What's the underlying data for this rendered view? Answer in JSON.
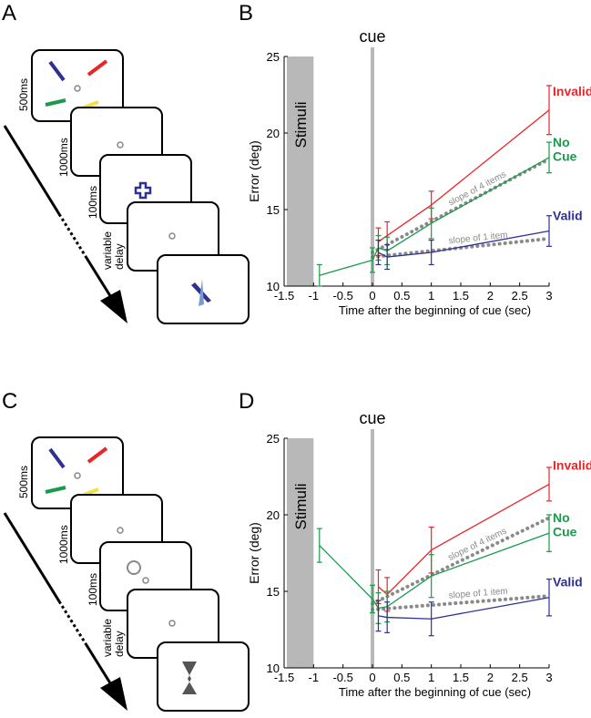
{
  "panel_labels": {
    "a": "A",
    "b": "B",
    "c": "C",
    "d": "D"
  },
  "timelines": [
    {
      "steps": [
        "500ms",
        "1000ms",
        "100ms",
        "variable delay"
      ]
    },
    {
      "steps": [
        "500ms",
        "1000ms",
        "100ms",
        "variable delay"
      ]
    }
  ],
  "chart_data": [
    {
      "type": "line",
      "xlabel": "Time  after the beginning of cue (sec)",
      "ylabel": "Error (deg)",
      "xlim": [
        -1.5,
        3
      ],
      "ylim": [
        10,
        25
      ],
      "xticks": [
        -1.5,
        -1,
        -0.5,
        0,
        0.5,
        1,
        1.5,
        2,
        2.5,
        3
      ],
      "yticks": [
        10,
        15,
        20,
        25
      ],
      "stimuli_label": "Stimuli",
      "stimuli_span": [
        -1.5,
        -1
      ],
      "cue_label": "cue",
      "cue_x": 0,
      "series": [
        {
          "name": "Invalid",
          "color": "#e8262a",
          "x": [
            0.1,
            0.25,
            1,
            3
          ],
          "values": [
            12.9,
            13.3,
            15.3,
            21.5
          ],
          "errors": [
            0.9,
            0.9,
            0.9,
            1.6
          ]
        },
        {
          "name": "No Cue",
          "color": "#1a9a4a",
          "x": [
            -0.9,
            0,
            0.1,
            0.25,
            1,
            3
          ],
          "values": [
            10.7,
            11.7,
            12.5,
            12.3,
            14.1,
            18.4
          ],
          "errors": [
            0.7,
            0.8,
            0.8,
            0.9,
            1.0,
            1.0
          ]
        },
        {
          "name": "Valid",
          "color": "#2e3192",
          "x": [
            0.1,
            0.25,
            1,
            3
          ],
          "values": [
            12.2,
            11.9,
            12.2,
            13.6
          ],
          "errors": [
            0.8,
            0.8,
            0.8,
            1.0
          ]
        }
      ],
      "reference_lines": [
        {
          "name": "slope of 4 items",
          "color": "#8a8a8a",
          "x": [
            0,
            3
          ],
          "values": [
            12.2,
            18.3
          ]
        },
        {
          "name": "slope of 1 item",
          "color": "#8a8a8a",
          "x": [
            0,
            3
          ],
          "values": [
            11.9,
            13.1
          ]
        }
      ]
    },
    {
      "type": "line",
      "xlabel": "Time  after the beginning of cue (sec)",
      "ylabel": "Error (deg)",
      "xlim": [
        -1.5,
        3
      ],
      "ylim": [
        10,
        25
      ],
      "xticks": [
        -1.5,
        -1,
        -0.5,
        0,
        0.5,
        1,
        1.5,
        2,
        2.5,
        3
      ],
      "yticks": [
        10,
        15,
        20,
        25
      ],
      "stimuli_label": "Stimuli",
      "stimuli_span": [
        -1.5,
        -1
      ],
      "cue_label": "cue",
      "cue_x": 0,
      "series": [
        {
          "name": "Invalid",
          "color": "#e8262a",
          "x": [
            0.1,
            0.25,
            1,
            3
          ],
          "values": [
            15.3,
            14.8,
            17.7,
            22
          ],
          "errors": [
            1.1,
            1.1,
            1.5,
            1.1
          ]
        },
        {
          "name": "No Cue",
          "color": "#1a9a4a",
          "x": [
            -0.9,
            0,
            0.1,
            0.25,
            1,
            3
          ],
          "values": [
            18,
            14.5,
            13.9,
            14,
            16,
            18.8
          ],
          "errors": [
            1.1,
            0.9,
            1.0,
            1.0,
            1.4,
            1.2
          ]
        },
        {
          "name": "Valid",
          "color": "#2e3192",
          "x": [
            0.1,
            0.25,
            1,
            3
          ],
          "values": [
            13.4,
            13.3,
            13.2,
            14.6
          ],
          "errors": [
            1.0,
            1.0,
            1.1,
            1.2
          ]
        }
      ],
      "reference_lines": [
        {
          "name": "slope of 4 items",
          "color": "#8a8a8a",
          "x": [
            0,
            3
          ],
          "values": [
            14.2,
            19.8
          ]
        },
        {
          "name": "slope of 1 item",
          "color": "#8a8a8a",
          "x": [
            0,
            3
          ],
          "values": [
            13.8,
            14.7
          ]
        }
      ]
    }
  ]
}
